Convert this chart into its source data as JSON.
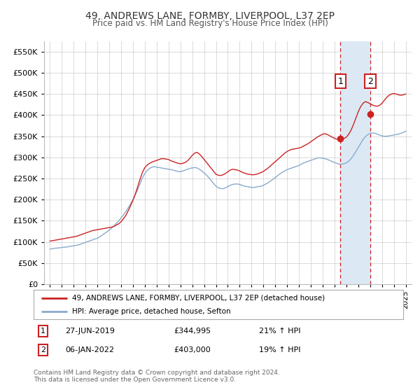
{
  "title": "49, ANDREWS LANE, FORMBY, LIVERPOOL, L37 2EP",
  "subtitle": "Price paid vs. HM Land Registry's House Price Index (HPI)",
  "legend_label1": "49, ANDREWS LANE, FORMBY, LIVERPOOL, L37 2EP (detached house)",
  "legend_label2": "HPI: Average price, detached house, Sefton",
  "purchase1": {
    "date_label": "27-JUN-2019",
    "year": 2019.49,
    "price": 344995,
    "label": "1"
  },
  "purchase2": {
    "date_label": "06-JAN-2022",
    "year": 2022.02,
    "price": 403000,
    "label": "2"
  },
  "footnote1": "Contains HM Land Registry data © Crown copyright and database right 2024.",
  "footnote2": "This data is licensed under the Open Government Licence v3.0.",
  "color_red": "#cc2222",
  "color_blue": "#88aacc",
  "color_shade": "#dce9f5",
  "ylim": [
    0,
    575000
  ],
  "yticks": [
    0,
    50000,
    100000,
    150000,
    200000,
    250000,
    300000,
    350000,
    400000,
    450000,
    500000,
    550000
  ],
  "xlim_start": 1994.5,
  "xlim_end": 2025.5,
  "background_color": "#ffffff",
  "grid_color": "#cccccc",
  "years_hpi": [
    1995.0,
    1995.2,
    1995.4,
    1995.6,
    1995.8,
    1996.0,
    1996.2,
    1996.4,
    1996.6,
    1996.8,
    1997.0,
    1997.2,
    1997.4,
    1997.6,
    1997.8,
    1998.0,
    1998.2,
    1998.4,
    1998.6,
    1998.8,
    1999.0,
    1999.2,
    1999.4,
    1999.6,
    1999.8,
    2000.0,
    2000.2,
    2000.4,
    2000.6,
    2000.8,
    2001.0,
    2001.2,
    2001.4,
    2001.6,
    2001.8,
    2002.0,
    2002.2,
    2002.4,
    2002.6,
    2002.8,
    2003.0,
    2003.2,
    2003.4,
    2003.6,
    2003.8,
    2004.0,
    2004.2,
    2004.4,
    2004.6,
    2004.8,
    2005.0,
    2005.2,
    2005.4,
    2005.6,
    2005.8,
    2006.0,
    2006.2,
    2006.4,
    2006.6,
    2006.8,
    2007.0,
    2007.2,
    2007.4,
    2007.6,
    2007.8,
    2008.0,
    2008.2,
    2008.4,
    2008.6,
    2008.8,
    2009.0,
    2009.2,
    2009.4,
    2009.6,
    2009.8,
    2010.0,
    2010.2,
    2010.4,
    2010.6,
    2010.8,
    2011.0,
    2011.2,
    2011.4,
    2011.6,
    2011.8,
    2012.0,
    2012.2,
    2012.4,
    2012.6,
    2012.8,
    2013.0,
    2013.2,
    2013.4,
    2013.6,
    2013.8,
    2014.0,
    2014.2,
    2014.4,
    2014.6,
    2014.8,
    2015.0,
    2015.2,
    2015.4,
    2015.6,
    2015.8,
    2016.0,
    2016.2,
    2016.4,
    2016.6,
    2016.8,
    2017.0,
    2017.2,
    2017.4,
    2017.6,
    2017.8,
    2018.0,
    2018.2,
    2018.4,
    2018.6,
    2018.8,
    2019.0,
    2019.2,
    2019.4,
    2019.6,
    2019.8,
    2020.0,
    2020.2,
    2020.4,
    2020.6,
    2020.8,
    2021.0,
    2021.2,
    2021.4,
    2021.6,
    2021.8,
    2022.0,
    2022.2,
    2022.4,
    2022.6,
    2022.8,
    2023.0,
    2023.2,
    2023.4,
    2023.6,
    2023.8,
    2024.0,
    2024.2,
    2024.4,
    2024.6,
    2024.8,
    2025.0
  ],
  "hpi_values": [
    83000,
    84000,
    85000,
    85500,
    86000,
    87000,
    87500,
    88000,
    89000,
    90000,
    91000,
    92000,
    93000,
    95000,
    97000,
    99000,
    101000,
    103000,
    105000,
    107000,
    109000,
    112000,
    116000,
    120000,
    124000,
    128000,
    133000,
    138000,
    144000,
    150000,
    157000,
    164000,
    172000,
    181000,
    190000,
    200000,
    212000,
    224000,
    238000,
    252000,
    262000,
    269000,
    274000,
    277000,
    278000,
    277000,
    276000,
    275000,
    274000,
    273000,
    272000,
    271000,
    270000,
    268000,
    267000,
    266000,
    268000,
    270000,
    272000,
    274000,
    275000,
    276000,
    275000,
    272000,
    268000,
    263000,
    258000,
    252000,
    245000,
    238000,
    232000,
    228000,
    226000,
    226000,
    228000,
    231000,
    234000,
    236000,
    237000,
    237000,
    236000,
    234000,
    232000,
    231000,
    230000,
    229000,
    229000,
    230000,
    231000,
    232000,
    234000,
    237000,
    240000,
    244000,
    248000,
    252000,
    257000,
    261000,
    265000,
    268000,
    271000,
    273000,
    275000,
    277000,
    279000,
    281000,
    284000,
    287000,
    289000,
    291000,
    293000,
    295000,
    297000,
    299000,
    299000,
    298000,
    297000,
    295000,
    293000,
    290000,
    288000,
    286000,
    284000,
    284000,
    285000,
    287000,
    291000,
    297000,
    305000,
    314000,
    323000,
    333000,
    342000,
    349000,
    354000,
    357000,
    358000,
    357000,
    355000,
    353000,
    351000,
    350000,
    350000,
    351000,
    352000,
    353000,
    354000,
    355000,
    357000,
    359000,
    362000
  ],
  "red_values": [
    102000,
    103000,
    104000,
    105000,
    106000,
    107000,
    108000,
    109000,
    110000,
    111000,
    112000,
    113000,
    115000,
    117000,
    119000,
    121000,
    123000,
    125000,
    127000,
    128000,
    129000,
    130000,
    131000,
    132000,
    133000,
    134000,
    135000,
    137000,
    140000,
    143000,
    148000,
    155000,
    163000,
    174000,
    186000,
    199000,
    214000,
    231000,
    249000,
    265000,
    276000,
    282000,
    286000,
    289000,
    291000,
    293000,
    295000,
    297000,
    297000,
    296000,
    295000,
    292000,
    290000,
    288000,
    286000,
    285000,
    286000,
    288000,
    292000,
    298000,
    305000,
    310000,
    312000,
    308000,
    302000,
    295000,
    288000,
    281000,
    274000,
    267000,
    260000,
    258000,
    257000,
    259000,
    262000,
    266000,
    270000,
    272000,
    271000,
    270000,
    268000,
    265000,
    263000,
    261000,
    260000,
    259000,
    259000,
    260000,
    262000,
    264000,
    267000,
    271000,
    275000,
    280000,
    285000,
    290000,
    295000,
    300000,
    305000,
    310000,
    314000,
    317000,
    319000,
    320000,
    321000,
    322000,
    324000,
    327000,
    330000,
    333000,
    337000,
    341000,
    345000,
    349000,
    352000,
    355000,
    356000,
    354000,
    351000,
    348000,
    345000,
    343000,
    342000,
    343000,
    345000,
    348000,
    355000,
    365000,
    378000,
    393000,
    408000,
    420000,
    428000,
    432000,
    430000,
    427000,
    424000,
    422000,
    421000,
    423000,
    428000,
    435000,
    442000,
    447000,
    450000,
    451000,
    450000,
    448000,
    447000,
    448000,
    450000
  ]
}
